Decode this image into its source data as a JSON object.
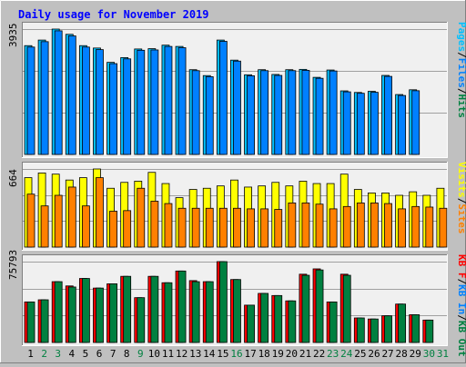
{
  "title": "Daily usage for November 2019",
  "colors": {
    "background": "#c0c0c0",
    "plot_bg": "#f0f0f0",
    "title": "#0000ff",
    "hits": "#00c0ff",
    "files": "#0080ff",
    "visits": "#ffff00",
    "sites": "#ff8000",
    "kbin": "#ff0000",
    "kbout": "#008040",
    "pages": "#00c0ff"
  },
  "chart_data": {
    "type": "bar",
    "title": "Daily usage for November 2019",
    "categories": [
      "1",
      "2",
      "3",
      "4",
      "5",
      "6",
      "7",
      "8",
      "9",
      "10",
      "11",
      "12",
      "13",
      "14",
      "15",
      "16",
      "17",
      "18",
      "19",
      "20",
      "21",
      "22",
      "23",
      "24",
      "25",
      "26",
      "27",
      "28",
      "29",
      "30",
      "31"
    ],
    "weekend_days": [
      "2",
      "3",
      "9",
      "16",
      "23",
      "24",
      "30",
      "31"
    ],
    "panels": [
      {
        "name": "requests",
        "max_label": "3935",
        "right_label": [
          "Pages",
          "/",
          "Files",
          "/",
          "Hits"
        ],
        "series": [
          {
            "name": "Hits",
            "values": [
              3415,
              3590,
              3935,
              3770,
              3415,
              3340,
              2890,
              3040,
              3310,
              3320,
              3430,
              3390,
              2660,
              2475,
              3590,
              2960,
              2500,
              2660,
              2510,
              2660,
              2670,
              2420,
              2650,
              1995,
              1945,
              1980,
              2480,
              1880,
              2030,
              null,
              null
            ]
          },
          {
            "name": "Files",
            "values": [
              3370,
              3540,
              3880,
              3720,
              3370,
              3290,
              2850,
              3000,
              3270,
              3280,
              3390,
              3350,
              2630,
              2440,
              3550,
              2930,
              2470,
              2630,
              2480,
              2630,
              2640,
              2390,
              2620,
              1965,
              1920,
              1950,
              2450,
              1850,
              2000,
              null,
              null
            ]
          }
        ]
      },
      {
        "name": "visits",
        "max_label": "664",
        "right_label": [
          "Visits",
          "/",
          "Sites"
        ],
        "series": [
          {
            "name": "Visits",
            "values": [
              590,
              630,
              620,
              570,
              590,
              664,
              500,
              550,
              560,
              635,
              540,
              420,
              490,
              500,
              520,
              570,
              510,
              520,
              550,
              520,
              560,
              540,
              540,
              620,
              490,
              460,
              460,
              440,
              470,
              440,
              500
            ]
          },
          {
            "name": "Sites",
            "values": [
              450,
              350,
              440,
              510,
              350,
              590,
              305,
              310,
              500,
              390,
              370,
              330,
              330,
              330,
              330,
              330,
              325,
              325,
              320,
              375,
              375,
              365,
              325,
              345,
              375,
              375,
              370,
              325,
              345,
              340,
              330
            ]
          }
        ]
      },
      {
        "name": "kbytes",
        "max_label": "75793",
        "right_label": [
          "KB F",
          "/",
          "KB In",
          "/",
          "KB Out"
        ],
        "series": [
          {
            "name": "KB In",
            "values": [
              38000,
              40000,
              57000,
              53000,
              60000,
              51000,
              55000,
              62000,
              42000,
              62000,
              56000,
              67000,
              58000,
              57000,
              75793,
              59000,
              35000,
              46000,
              44000,
              39000,
              64000,
              69000,
              38000,
              64000,
              23000,
              22000,
              25000,
              36000,
              26000,
              21000,
              null
            ]
          },
          {
            "name": "KB Out",
            "values": [
              38000,
              40000,
              57000,
              52000,
              60000,
              51000,
              55000,
              62000,
              42000,
              62000,
              56000,
              67000,
              57000,
              57000,
              75793,
              59000,
              35000,
              46000,
              44000,
              39000,
              63000,
              68000,
              38000,
              63000,
              23000,
              22000,
              25000,
              36000,
              26000,
              21000,
              null
            ]
          }
        ]
      }
    ]
  }
}
